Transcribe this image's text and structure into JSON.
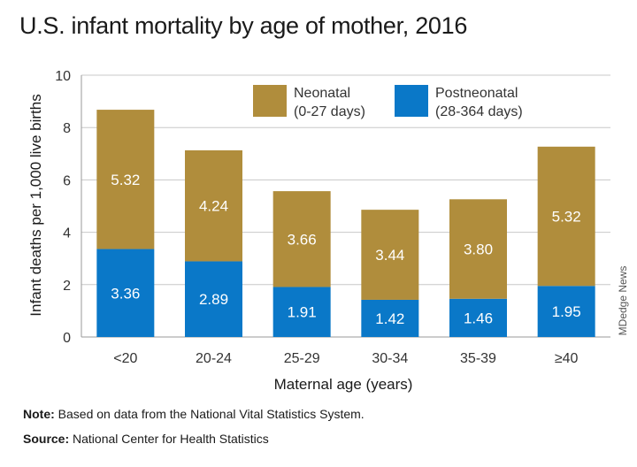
{
  "title": "U.S. infant mortality by age of mother, 2016",
  "note_label": "Note:",
  "note_text": " Based on data from the National Vital Statistics System.",
  "source_label": "Source:",
  "source_text": " National Center for Health Statistics",
  "credit": "MDedge News",
  "colors": {
    "neonatal": "#b08d3c",
    "postneonatal": "#0a78c8"
  },
  "chart_data": {
    "type": "bar",
    "stacked": true,
    "xlabel": "Maternal age (years)",
    "ylabel": "Infant deaths per 1,000 live births",
    "ylim": [
      0,
      10
    ],
    "yticks": [
      "0",
      "2",
      "4",
      "6",
      "8",
      "10"
    ],
    "grid": true,
    "legend_position": "top",
    "categories": [
      "<20",
      "20-24",
      "25-29",
      "30-34",
      "35-39",
      "≥40"
    ],
    "series": [
      {
        "name": "Postneonatal",
        "sublabel": "(28-364 days)",
        "values": [
          3.36,
          2.89,
          1.91,
          1.42,
          1.46,
          1.95
        ],
        "labels": [
          "3.36",
          "2.89",
          "1.91",
          "1.42",
          "1.46",
          "1.95"
        ]
      },
      {
        "name": "Neonatal",
        "sublabel": "(0-27 days)",
        "values": [
          5.32,
          4.24,
          3.66,
          3.44,
          3.8,
          5.32
        ],
        "labels": [
          "5.32",
          "4.24",
          "3.66",
          "3.44",
          "3.80",
          "5.32"
        ]
      }
    ]
  }
}
